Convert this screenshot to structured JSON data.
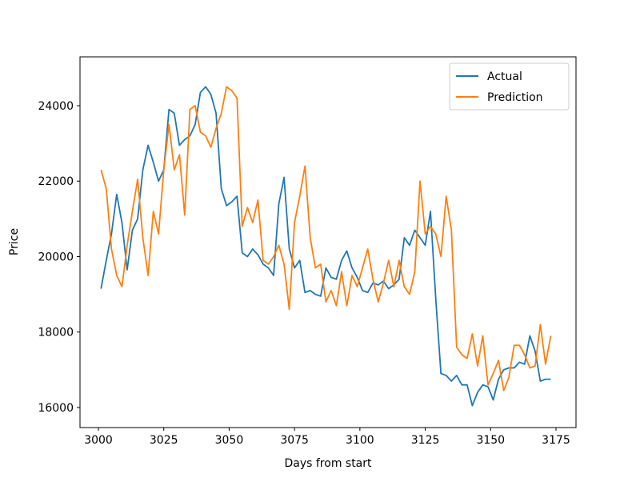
{
  "chart_data": {
    "type": "line",
    "xlabel": "Days from start",
    "ylabel": "Price",
    "x": [
      3001,
      3003,
      3005,
      3007,
      3009,
      3011,
      3013,
      3015,
      3017,
      3019,
      3021,
      3023,
      3025,
      3027,
      3029,
      3031,
      3033,
      3035,
      3037,
      3039,
      3041,
      3043,
      3045,
      3047,
      3049,
      3051,
      3053,
      3055,
      3057,
      3059,
      3061,
      3063,
      3065,
      3067,
      3069,
      3071,
      3073,
      3075,
      3077,
      3079,
      3081,
      3083,
      3085,
      3087,
      3089,
      3091,
      3093,
      3095,
      3097,
      3099,
      3101,
      3103,
      3105,
      3107,
      3109,
      3111,
      3113,
      3115,
      3117,
      3119,
      3121,
      3123,
      3125,
      3127,
      3129,
      3131,
      3133,
      3135,
      3137,
      3139,
      3141,
      3143,
      3145,
      3147,
      3149,
      3151,
      3153,
      3155,
      3157,
      3159,
      3161,
      3163,
      3165,
      3167,
      3169,
      3171,
      3173
    ],
    "series": [
      {
        "name": "Actual",
        "color": "#1f77b4",
        "values": [
          19150,
          19900,
          20600,
          21650,
          20900,
          19650,
          20700,
          21000,
          22300,
          22950,
          22500,
          22000,
          22300,
          23900,
          23800,
          22950,
          23100,
          23200,
          23500,
          24350,
          24500,
          24300,
          23800,
          21800,
          21350,
          21450,
          21600,
          20100,
          20000,
          20200,
          20050,
          19800,
          19700,
          19500,
          21400,
          22100,
          20200,
          19700,
          19900,
          19050,
          19100,
          19000,
          18950,
          19700,
          19450,
          19400,
          19900,
          20150,
          19700,
          19450,
          19100,
          19050,
          19300,
          19250,
          19350,
          19150,
          19250,
          19400,
          20500,
          20300,
          20700,
          20500,
          20300,
          21200,
          18900,
          16900,
          16850,
          16700,
          16850,
          16600,
          16600,
          16050,
          16400,
          16600,
          16550,
          16200,
          16750,
          17000,
          17050,
          17050,
          17200,
          17150,
          17900,
          17500,
          16700,
          16750,
          16750
        ]
      },
      {
        "name": "Prediction",
        "color": "#ff7f0e",
        "values": [
          22300,
          21800,
          20200,
          19500,
          19200,
          20300,
          21200,
          22050,
          20500,
          19500,
          21200,
          20600,
          22300,
          23500,
          22300,
          22700,
          21100,
          23900,
          24000,
          23300,
          23200,
          22900,
          23400,
          23800,
          24500,
          24400,
          24200,
          20800,
          21300,
          20900,
          21500,
          19900,
          19800,
          20000,
          20300,
          19800,
          18600,
          20900,
          21600,
          22400,
          20500,
          19700,
          19800,
          18800,
          19100,
          18700,
          19600,
          18700,
          19500,
          19200,
          19700,
          20200,
          19400,
          18800,
          19300,
          19900,
          19200,
          19900,
          19200,
          19000,
          19600,
          22000,
          20600,
          20800,
          20600,
          20000,
          21600,
          20700,
          17600,
          17400,
          17300,
          17950,
          17100,
          17900,
          16600,
          16900,
          17250,
          16450,
          16800,
          17650,
          17650,
          17400,
          17050,
          17100,
          18200,
          17150,
          17900
        ]
      }
    ],
    "xlim": [
      2992.96,
      3182.65
    ],
    "ylim": [
      15469,
      25294
    ],
    "xticks": [
      3000,
      3025,
      3050,
      3075,
      3100,
      3125,
      3150,
      3175
    ],
    "yticks": [
      16000,
      18000,
      20000,
      22000,
      24000
    ],
    "legend": "upper right",
    "grid": false
  }
}
